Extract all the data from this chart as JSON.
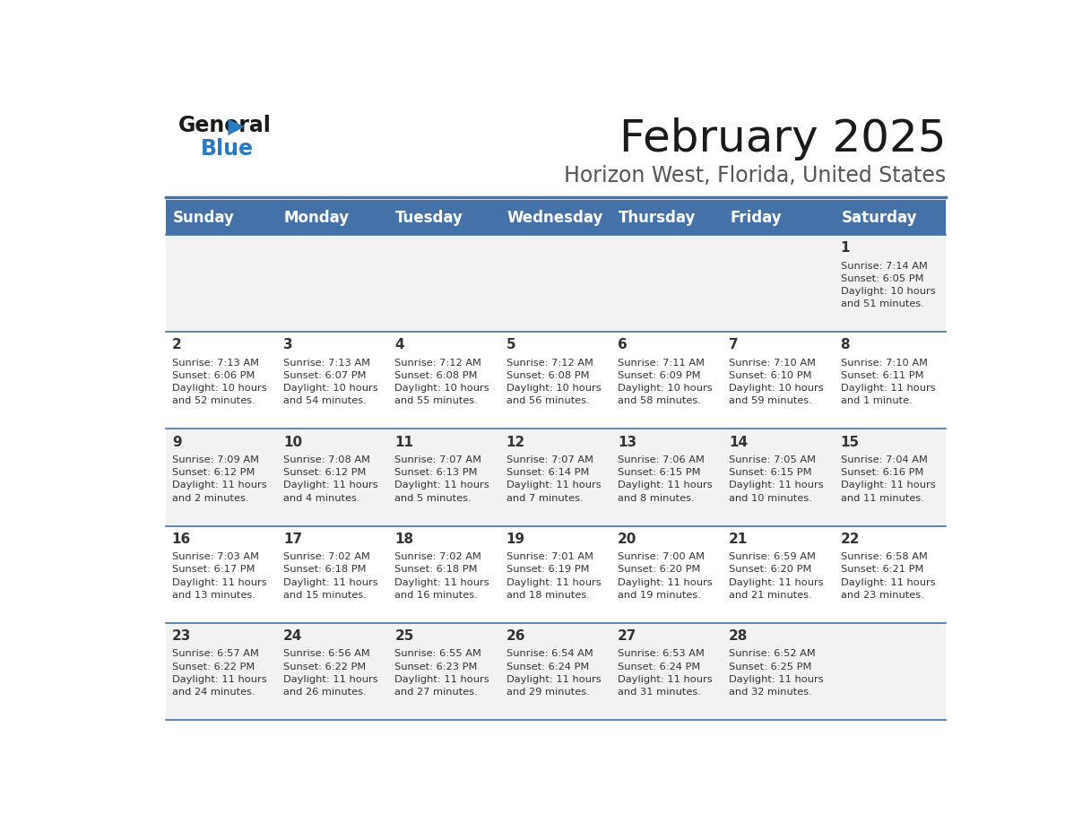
{
  "title": "February 2025",
  "subtitle": "Horizon West, Florida, United States",
  "header_bg": "#4472a8",
  "header_text": "#ffffff",
  "row_bg_odd": "#f2f2f2",
  "row_bg_even": "#ffffff",
  "separator_color": "#4472a8",
  "day_headers": [
    "Sunday",
    "Monday",
    "Tuesday",
    "Wednesday",
    "Thursday",
    "Friday",
    "Saturday"
  ],
  "cell_text_color": "#333333",
  "day_num_color": "#333333",
  "logo_general_color": "#1a1a1a",
  "logo_blue_color": "#2a7abf",
  "weeks": [
    [
      {
        "day": null,
        "sunrise": null,
        "sunset": null,
        "daylight": null
      },
      {
        "day": null,
        "sunrise": null,
        "sunset": null,
        "daylight": null
      },
      {
        "day": null,
        "sunrise": null,
        "sunset": null,
        "daylight": null
      },
      {
        "day": null,
        "sunrise": null,
        "sunset": null,
        "daylight": null
      },
      {
        "day": null,
        "sunrise": null,
        "sunset": null,
        "daylight": null
      },
      {
        "day": null,
        "sunrise": null,
        "sunset": null,
        "daylight": null
      },
      {
        "day": 1,
        "sunrise": "7:14 AM",
        "sunset": "6:05 PM",
        "daylight": "10 hours\nand 51 minutes."
      }
    ],
    [
      {
        "day": 2,
        "sunrise": "7:13 AM",
        "sunset": "6:06 PM",
        "daylight": "10 hours\nand 52 minutes."
      },
      {
        "day": 3,
        "sunrise": "7:13 AM",
        "sunset": "6:07 PM",
        "daylight": "10 hours\nand 54 minutes."
      },
      {
        "day": 4,
        "sunrise": "7:12 AM",
        "sunset": "6:08 PM",
        "daylight": "10 hours\nand 55 minutes."
      },
      {
        "day": 5,
        "sunrise": "7:12 AM",
        "sunset": "6:08 PM",
        "daylight": "10 hours\nand 56 minutes."
      },
      {
        "day": 6,
        "sunrise": "7:11 AM",
        "sunset": "6:09 PM",
        "daylight": "10 hours\nand 58 minutes."
      },
      {
        "day": 7,
        "sunrise": "7:10 AM",
        "sunset": "6:10 PM",
        "daylight": "10 hours\nand 59 minutes."
      },
      {
        "day": 8,
        "sunrise": "7:10 AM",
        "sunset": "6:11 PM",
        "daylight": "11 hours\nand 1 minute."
      }
    ],
    [
      {
        "day": 9,
        "sunrise": "7:09 AM",
        "sunset": "6:12 PM",
        "daylight": "11 hours\nand 2 minutes."
      },
      {
        "day": 10,
        "sunrise": "7:08 AM",
        "sunset": "6:12 PM",
        "daylight": "11 hours\nand 4 minutes."
      },
      {
        "day": 11,
        "sunrise": "7:07 AM",
        "sunset": "6:13 PM",
        "daylight": "11 hours\nand 5 minutes."
      },
      {
        "day": 12,
        "sunrise": "7:07 AM",
        "sunset": "6:14 PM",
        "daylight": "11 hours\nand 7 minutes."
      },
      {
        "day": 13,
        "sunrise": "7:06 AM",
        "sunset": "6:15 PM",
        "daylight": "11 hours\nand 8 minutes."
      },
      {
        "day": 14,
        "sunrise": "7:05 AM",
        "sunset": "6:15 PM",
        "daylight": "11 hours\nand 10 minutes."
      },
      {
        "day": 15,
        "sunrise": "7:04 AM",
        "sunset": "6:16 PM",
        "daylight": "11 hours\nand 11 minutes."
      }
    ],
    [
      {
        "day": 16,
        "sunrise": "7:03 AM",
        "sunset": "6:17 PM",
        "daylight": "11 hours\nand 13 minutes."
      },
      {
        "day": 17,
        "sunrise": "7:02 AM",
        "sunset": "6:18 PM",
        "daylight": "11 hours\nand 15 minutes."
      },
      {
        "day": 18,
        "sunrise": "7:02 AM",
        "sunset": "6:18 PM",
        "daylight": "11 hours\nand 16 minutes."
      },
      {
        "day": 19,
        "sunrise": "7:01 AM",
        "sunset": "6:19 PM",
        "daylight": "11 hours\nand 18 minutes."
      },
      {
        "day": 20,
        "sunrise": "7:00 AM",
        "sunset": "6:20 PM",
        "daylight": "11 hours\nand 19 minutes."
      },
      {
        "day": 21,
        "sunrise": "6:59 AM",
        "sunset": "6:20 PM",
        "daylight": "11 hours\nand 21 minutes."
      },
      {
        "day": 22,
        "sunrise": "6:58 AM",
        "sunset": "6:21 PM",
        "daylight": "11 hours\nand 23 minutes."
      }
    ],
    [
      {
        "day": 23,
        "sunrise": "6:57 AM",
        "sunset": "6:22 PM",
        "daylight": "11 hours\nand 24 minutes."
      },
      {
        "day": 24,
        "sunrise": "6:56 AM",
        "sunset": "6:22 PM",
        "daylight": "11 hours\nand 26 minutes."
      },
      {
        "day": 25,
        "sunrise": "6:55 AM",
        "sunset": "6:23 PM",
        "daylight": "11 hours\nand 27 minutes."
      },
      {
        "day": 26,
        "sunrise": "6:54 AM",
        "sunset": "6:24 PM",
        "daylight": "11 hours\nand 29 minutes."
      },
      {
        "day": 27,
        "sunrise": "6:53 AM",
        "sunset": "6:24 PM",
        "daylight": "11 hours\nand 31 minutes."
      },
      {
        "day": 28,
        "sunrise": "6:52 AM",
        "sunset": "6:25 PM",
        "daylight": "11 hours\nand 32 minutes."
      },
      {
        "day": null,
        "sunrise": null,
        "sunset": null,
        "daylight": null
      }
    ]
  ]
}
